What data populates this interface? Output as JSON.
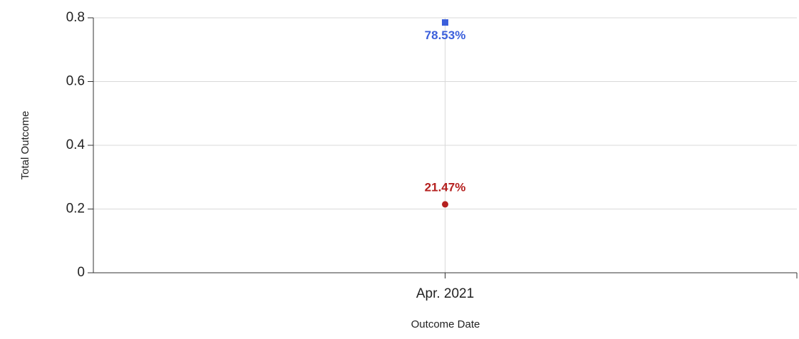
{
  "chart_data": {
    "type": "line",
    "x_label": "Outcome Date",
    "y_label": "Total Outcome",
    "categories": [
      "Apr. 2021"
    ],
    "series": [
      {
        "color": "#3b5fdb",
        "marker": "square",
        "values": [
          0.7853
        ],
        "value_labels": [
          "78.53%"
        ]
      },
      {
        "color": "#b5201f",
        "marker": "circle",
        "values": [
          0.2147
        ],
        "value_labels": [
          "21.47%"
        ]
      }
    ],
    "ylim": [
      0,
      0.8
    ],
    "yticks": [
      0,
      0.2,
      0.4,
      0.6,
      0.8
    ],
    "grid": true
  }
}
